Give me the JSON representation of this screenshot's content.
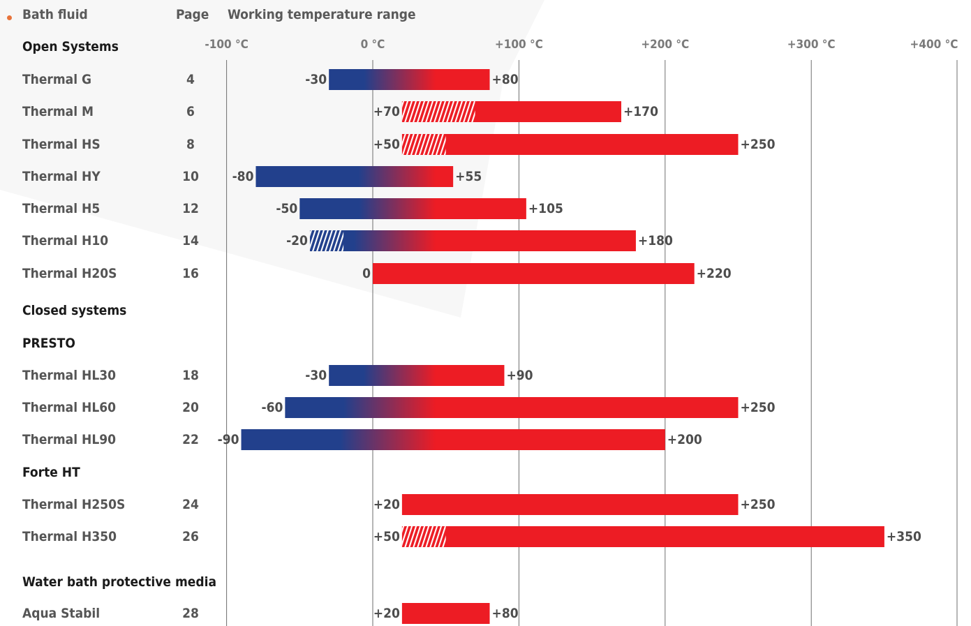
{
  "header": {
    "col_fluid": "Bath fluid",
    "col_page": "Page",
    "col_range": "Working temperature range"
  },
  "chart_data": {
    "type": "bar",
    "subtype": "floating-range",
    "xlim": [
      -100,
      400
    ],
    "x_ticks": [
      {
        "value": -100,
        "label": "-100 °C"
      },
      {
        "value": 0,
        "label": "0 °C"
      },
      {
        "value": 100,
        "label": "+100 °C"
      },
      {
        "value": 200,
        "label": "+200 °C"
      },
      {
        "value": 300,
        "label": "+300 °C"
      },
      {
        "value": 400,
        "label": "+400 °C"
      }
    ],
    "colors": {
      "cold": "#22408c",
      "hot": "#ed1c24",
      "hatch": "#ffffff",
      "grid": "#6e6e6e"
    },
    "rows": [
      {
        "kind": "section",
        "label": "Open Systems"
      },
      {
        "kind": "item",
        "label": "Thermal G",
        "page": "4",
        "min": -30,
        "max": 80,
        "min_label": "-30",
        "max_label": "+80"
      },
      {
        "kind": "item",
        "label": "Thermal M",
        "page": "6",
        "min": 20,
        "max": 170,
        "min_label": "+70",
        "max_label": "+170",
        "hatch_to": 70
      },
      {
        "kind": "item",
        "label": "Thermal HS",
        "page": "8",
        "min": 20,
        "max": 250,
        "min_label": "+50",
        "max_label": "+250",
        "hatch_to": 50
      },
      {
        "kind": "item",
        "label": "Thermal HY",
        "page": "10",
        "min": -80,
        "max": 55,
        "min_label": "-80",
        "max_label": "+55"
      },
      {
        "kind": "item",
        "label": "Thermal H5",
        "page": "12",
        "min": -50,
        "max": 105,
        "min_label": "-50",
        "max_label": "+105"
      },
      {
        "kind": "item",
        "label": "Thermal H10",
        "page": "14",
        "min": -43,
        "max": 180,
        "min_label": "-20",
        "max_label": "+180",
        "hatch_to": -20
      },
      {
        "kind": "item",
        "label": "Thermal H20S",
        "page": "16",
        "min": 0,
        "max": 220,
        "min_label": "0",
        "max_label": "+220"
      },
      {
        "kind": "section",
        "label": "Closed systems"
      },
      {
        "kind": "section",
        "label": "PRESTO"
      },
      {
        "kind": "item",
        "label": "Thermal HL30",
        "page": "18",
        "min": -30,
        "max": 90,
        "min_label": "-30",
        "max_label": "+90"
      },
      {
        "kind": "item",
        "label": "Thermal HL60",
        "page": "20",
        "min": -60,
        "max": 250,
        "min_label": "-60",
        "max_label": "+250"
      },
      {
        "kind": "item",
        "label": "Thermal HL90",
        "page": "22",
        "min": -90,
        "max": 200,
        "min_label": "-90",
        "max_label": "+200"
      },
      {
        "kind": "section",
        "label": "Forte HT"
      },
      {
        "kind": "item",
        "label": "Thermal H250S",
        "page": "24",
        "min": 20,
        "max": 250,
        "min_label": "+20",
        "max_label": "+250"
      },
      {
        "kind": "item",
        "label": "Thermal H350",
        "page": "26",
        "min": 20,
        "max": 350,
        "min_label": "+50",
        "max_label": "+350",
        "hatch_to": 50
      },
      {
        "kind": "section",
        "label": "Water bath protective media"
      },
      {
        "kind": "item",
        "label": "Aqua Stabil",
        "page": "28",
        "min": 20,
        "max": 80,
        "min_label": "+20",
        "max_label": "+80"
      }
    ]
  }
}
